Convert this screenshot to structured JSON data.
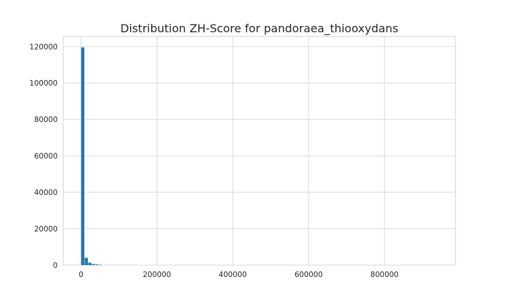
{
  "chart_data": {
    "type": "bar",
    "title": "Distribution ZH-Score for pandoraea_thiooxydans",
    "xlabel": "",
    "ylabel": "",
    "xlim": [
      -47000,
      987000
    ],
    "ylim": [
      0,
      125500
    ],
    "grid": true,
    "bar_color": "#1f77b4",
    "bin_width": 9400,
    "x_ticks": [
      0,
      200000,
      400000,
      600000,
      800000
    ],
    "x_tick_labels": [
      "0",
      "200000",
      "400000",
      "600000",
      "800000"
    ],
    "y_ticks": [
      0,
      20000,
      40000,
      60000,
      80000,
      100000,
      120000
    ],
    "y_tick_labels": [
      "0",
      "20000",
      "40000",
      "60000",
      "80000",
      "100000",
      "120000"
    ],
    "bins": [
      {
        "x0": 0,
        "x1": 9400,
        "value": 119500
      },
      {
        "x0": 9400,
        "x1": 18800,
        "value": 4000
      },
      {
        "x0": 18800,
        "x1": 28200,
        "value": 1300
      },
      {
        "x0": 28200,
        "x1": 37600,
        "value": 600
      },
      {
        "x0": 37600,
        "x1": 47000,
        "value": 400
      },
      {
        "x0": 47000,
        "x1": 56400,
        "value": 150
      },
      {
        "x0": 56400,
        "x1": 65800,
        "value": 80
      },
      {
        "x0": 65800,
        "x1": 75200,
        "value": 40
      },
      {
        "x0": 75200,
        "x1": 84600,
        "value": 20
      },
      {
        "x0": 84600,
        "x1": 94000,
        "value": 10
      }
    ]
  }
}
